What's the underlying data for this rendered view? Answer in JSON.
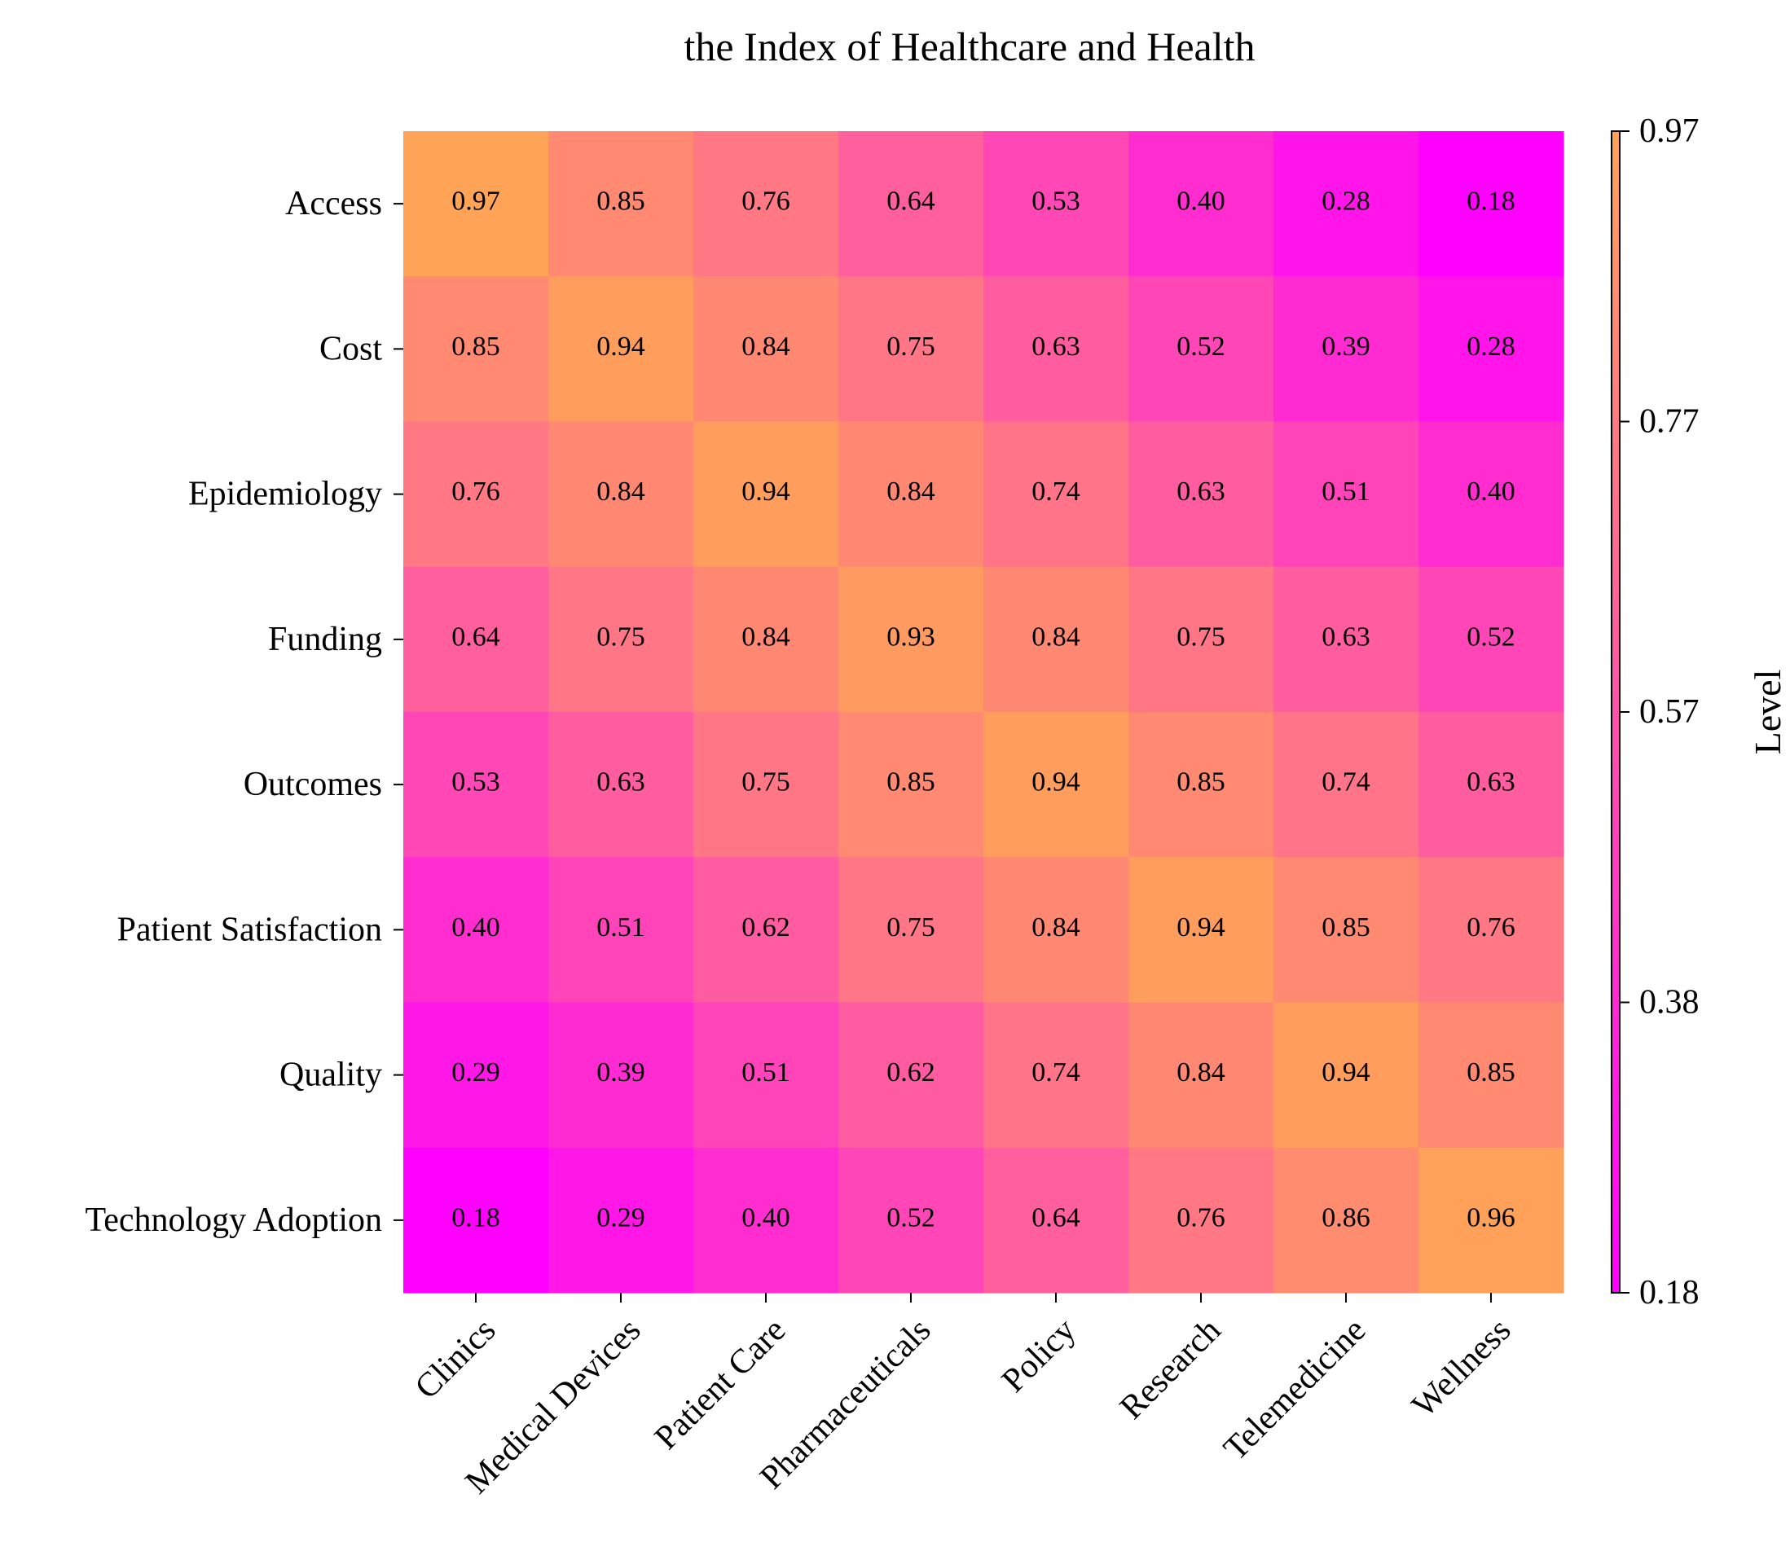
{
  "chart_data": {
    "type": "heatmap",
    "title": "the Index of Healthcare and Health",
    "x_categories": [
      "Clinics",
      "Medical Devices",
      "Patient Care",
      "Pharmaceuticals",
      "Policy",
      "Research",
      "Telemedicine",
      "Wellness"
    ],
    "y_categories": [
      "Access",
      "Cost",
      "Epidemiology",
      "Funding",
      "Outcomes",
      "Patient Satisfaction",
      "Quality",
      "Technology Adoption"
    ],
    "values": [
      [
        0.97,
        0.85,
        0.76,
        0.64,
        0.53,
        0.4,
        0.28,
        0.18
      ],
      [
        0.85,
        0.94,
        0.84,
        0.75,
        0.63,
        0.52,
        0.39,
        0.28
      ],
      [
        0.76,
        0.84,
        0.94,
        0.84,
        0.74,
        0.63,
        0.51,
        0.4
      ],
      [
        0.64,
        0.75,
        0.84,
        0.93,
        0.84,
        0.75,
        0.63,
        0.52
      ],
      [
        0.53,
        0.63,
        0.75,
        0.85,
        0.94,
        0.85,
        0.74,
        0.63
      ],
      [
        0.4,
        0.51,
        0.62,
        0.75,
        0.84,
        0.94,
        0.85,
        0.76
      ],
      [
        0.29,
        0.39,
        0.51,
        0.62,
        0.74,
        0.84,
        0.94,
        0.85
      ],
      [
        0.18,
        0.29,
        0.4,
        0.52,
        0.64,
        0.76,
        0.86,
        0.96
      ]
    ],
    "value_range": [
      0.18,
      0.97
    ],
    "colorbar": {
      "label": "Level",
      "ticks": [
        "0.18",
        "0.38",
        "0.57",
        "0.77",
        "0.97"
      ],
      "tick_values": [
        0.18,
        0.3775,
        0.575,
        0.7725,
        0.97
      ]
    },
    "colormap": {
      "low": "#ff00ff",
      "high": "#ffa357"
    },
    "grid": false
  }
}
